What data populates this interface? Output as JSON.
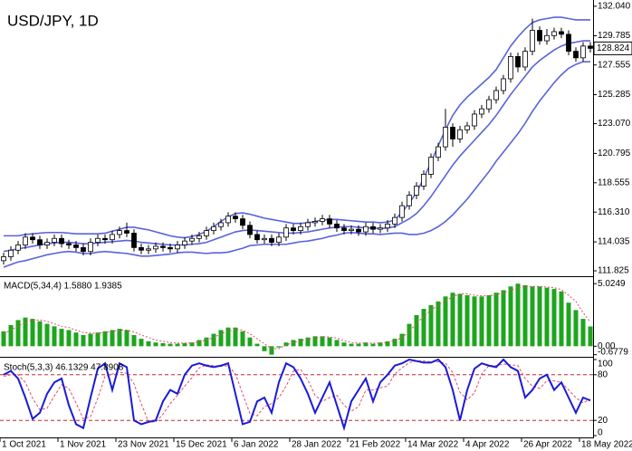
{
  "chart_data": [
    {
      "type": "candlestick",
      "title": "USD/JPY, 1D",
      "title_color": "#22b53c",
      "last_price": 128.824,
      "categories": [
        "1 Oct 2021",
        null,
        null,
        null,
        null,
        null,
        null,
        null,
        "1 Nov 2021",
        null,
        null,
        null,
        null,
        null,
        null,
        null,
        "23 Nov 2021",
        null,
        null,
        null,
        null,
        null,
        null,
        null,
        "15 Dec 2021",
        null,
        null,
        null,
        null,
        null,
        null,
        null,
        "6 Jan 2022",
        null,
        null,
        null,
        null,
        null,
        null,
        null,
        "28 Jan 2022",
        null,
        null,
        null,
        null,
        null,
        null,
        null,
        "21 Feb 2022",
        null,
        null,
        null,
        null,
        null,
        null,
        null,
        "14 Mar 2022",
        null,
        null,
        null,
        null,
        null,
        null,
        null,
        "4 Apr 2022",
        null,
        null,
        null,
        null,
        null,
        null,
        null,
        "26 Apr 2022",
        null,
        null,
        null,
        null,
        null,
        null,
        null,
        "18 May 2022",
        null
      ],
      "open": [
        112.6,
        112.9,
        113.4,
        113.8,
        114.4,
        114.2,
        113.8,
        114.0,
        114.3,
        113.9,
        113.8,
        113.6,
        113.3,
        114.0,
        114.3,
        114.2,
        114.6,
        114.9,
        114.7,
        113.6,
        113.4,
        113.5,
        113.7,
        113.6,
        113.5,
        113.8,
        114.1,
        114.3,
        114.5,
        114.9,
        115.2,
        115.5,
        116.0,
        115.8,
        115.3,
        114.6,
        114.2,
        114.3,
        114.0,
        114.4,
        115.1,
        114.9,
        115.2,
        115.5,
        115.6,
        115.8,
        115.4,
        115.1,
        114.9,
        115.0,
        114.8,
        115.2,
        115.0,
        115.1,
        115.4,
        115.9,
        116.8,
        117.6,
        118.3,
        119.2,
        120.5,
        121.3,
        122.8,
        121.9,
        122.6,
        122.9,
        123.8,
        124.2,
        124.9,
        125.6,
        126.5,
        128.2,
        127.4,
        128.6,
        130.2,
        129.4,
        129.8,
        130.1,
        129.9,
        128.6,
        128.1,
        129.0
      ],
      "high": [
        113.2,
        113.7,
        114.1,
        114.7,
        114.7,
        114.5,
        114.3,
        114.6,
        114.6,
        114.2,
        114.1,
        113.9,
        114.3,
        114.6,
        114.6,
        114.9,
        115.2,
        115.5,
        115.0,
        113.9,
        113.8,
        114.0,
        114.0,
        113.9,
        114.1,
        114.4,
        114.6,
        114.8,
        115.2,
        115.5,
        115.8,
        116.3,
        116.3,
        116.1,
        115.6,
        114.9,
        114.6,
        114.6,
        114.7,
        115.4,
        115.4,
        115.5,
        115.8,
        115.9,
        116.1,
        116.1,
        115.7,
        115.4,
        115.3,
        115.3,
        115.5,
        115.5,
        115.4,
        115.7,
        116.2,
        117.1,
        117.9,
        118.6,
        119.5,
        120.8,
        121.6,
        124.2,
        123.1,
        122.9,
        123.2,
        124.1,
        124.5,
        125.2,
        125.9,
        126.8,
        128.5,
        128.5,
        128.9,
        131.1,
        130.5,
        130.3,
        130.4,
        130.4,
        130.2,
        128.9,
        129.3,
        129.3
      ],
      "low": [
        112.3,
        112.6,
        113.1,
        113.5,
        113.9,
        113.5,
        113.5,
        113.7,
        113.6,
        113.5,
        113.3,
        113.0,
        113.0,
        113.7,
        113.9,
        113.9,
        114.3,
        114.4,
        113.3,
        113.1,
        113.1,
        113.2,
        113.3,
        113.2,
        113.2,
        113.5,
        113.8,
        114.0,
        114.2,
        114.6,
        114.9,
        115.2,
        115.5,
        115.0,
        114.3,
        113.9,
        113.9,
        113.7,
        113.7,
        114.1,
        114.6,
        114.6,
        114.9,
        115.2,
        115.3,
        115.1,
        114.8,
        114.6,
        114.6,
        114.5,
        114.5,
        114.7,
        114.7,
        114.8,
        115.1,
        115.6,
        116.5,
        117.3,
        118.0,
        118.9,
        120.2,
        121.0,
        121.3,
        121.6,
        122.3,
        122.6,
        123.5,
        123.9,
        124.6,
        125.3,
        126.2,
        127.0,
        127.1,
        128.3,
        129.1,
        129.1,
        129.5,
        129.6,
        128.3,
        127.8,
        127.8,
        128.5
      ],
      "close": [
        112.9,
        113.4,
        113.8,
        114.4,
        114.2,
        113.8,
        114.0,
        114.3,
        113.9,
        113.8,
        113.6,
        113.3,
        114.0,
        114.3,
        114.2,
        114.6,
        114.9,
        114.7,
        113.6,
        113.4,
        113.5,
        113.7,
        113.6,
        113.5,
        113.8,
        114.1,
        114.3,
        114.5,
        114.9,
        115.2,
        115.5,
        116.0,
        115.8,
        115.3,
        114.6,
        114.2,
        114.3,
        114.0,
        114.4,
        115.1,
        114.9,
        115.2,
        115.5,
        115.6,
        115.8,
        115.4,
        115.1,
        114.9,
        115.0,
        114.8,
        115.2,
        115.0,
        115.1,
        115.4,
        115.9,
        116.8,
        117.6,
        118.3,
        119.2,
        120.5,
        121.3,
        122.8,
        121.9,
        122.6,
        122.9,
        123.8,
        124.2,
        124.9,
        125.6,
        126.5,
        128.2,
        127.4,
        128.6,
        130.2,
        129.4,
        129.8,
        130.1,
        129.9,
        128.6,
        128.1,
        129.0,
        128.824
      ],
      "series": [
        {
          "color": "#5a63dc",
          "values": [
            114.5,
            114.5,
            114.5,
            114.6,
            114.65,
            114.7,
            114.75,
            114.75,
            114.75,
            114.7,
            114.65,
            114.65,
            114.65,
            114.65,
            114.7,
            114.85,
            115.0,
            115.15,
            115.15,
            115.05,
            114.95,
            114.8,
            114.65,
            114.5,
            114.4,
            114.35,
            114.45,
            114.6,
            114.85,
            115.2,
            115.6,
            115.95,
            116.2,
            116.25,
            116.15,
            116.0,
            115.85,
            115.75,
            115.65,
            115.55,
            115.45,
            115.45,
            115.5,
            115.6,
            115.7,
            115.75,
            115.75,
            115.7,
            115.65,
            115.6,
            115.55,
            115.55,
            115.5,
            115.55,
            115.7,
            116.3,
            117.0,
            117.8,
            118.9,
            120.1,
            121.4,
            122.6,
            123.7,
            124.5,
            125.1,
            125.6,
            126.1,
            126.6,
            127.2,
            128.1,
            129.0,
            129.7,
            130.3,
            130.8,
            131.0,
            131.1,
            131.2,
            131.2,
            131.1,
            131.0,
            131.0,
            131.0
          ]
        },
        {
          "color": "#5a63dc",
          "values": [
            113.3,
            113.4,
            113.5,
            113.6,
            113.7,
            113.8,
            113.9,
            113.95,
            114.0,
            114.0,
            113.95,
            113.9,
            113.9,
            113.95,
            114.0,
            114.05,
            114.1,
            114.15,
            114.1,
            114.0,
            113.95,
            113.9,
            113.85,
            113.8,
            113.8,
            113.8,
            113.85,
            113.9,
            114.0,
            114.2,
            114.4,
            114.6,
            114.8,
            114.9,
            114.95,
            114.9,
            114.85,
            114.8,
            114.75,
            114.7,
            114.7,
            114.75,
            114.8,
            114.9,
            115.0,
            115.1,
            115.15,
            115.2,
            115.2,
            115.15,
            115.1,
            115.1,
            115.05,
            115.1,
            115.2,
            115.5,
            115.8,
            116.2,
            116.8,
            117.5,
            118.3,
            119.1,
            119.9,
            120.6,
            121.2,
            121.8,
            122.4,
            123.0,
            123.7,
            124.5,
            125.3,
            126.0,
            126.7,
            127.4,
            127.9,
            128.3,
            128.7,
            129.0,
            129.2,
            129.3,
            129.4,
            129.4
          ]
        },
        {
          "color": "#5a63dc",
          "values": [
            112.1,
            112.3,
            112.5,
            112.6,
            112.75,
            112.9,
            113.05,
            113.15,
            113.25,
            113.3,
            113.25,
            113.15,
            113.15,
            113.25,
            113.3,
            113.25,
            113.2,
            113.15,
            113.05,
            112.95,
            112.95,
            113.0,
            113.05,
            113.1,
            113.2,
            113.25,
            113.25,
            113.2,
            113.15,
            113.2,
            113.2,
            113.25,
            113.4,
            113.55,
            113.75,
            113.8,
            113.85,
            113.85,
            113.85,
            113.85,
            113.95,
            114.05,
            114.1,
            114.2,
            114.3,
            114.45,
            114.55,
            114.7,
            114.75,
            114.7,
            114.65,
            114.65,
            114.6,
            114.65,
            114.7,
            114.7,
            114.6,
            114.6,
            114.7,
            114.9,
            115.2,
            115.6,
            116.1,
            116.7,
            117.3,
            118.0,
            118.7,
            119.4,
            120.2,
            120.9,
            121.6,
            122.3,
            123.1,
            124.0,
            124.8,
            125.5,
            126.2,
            126.8,
            127.3,
            127.6,
            127.8,
            127.8
          ]
        }
      ],
      "ylim": [
        111.55,
        132.38
      ],
      "yticks": [
        {
          "value": 132.04,
          "label": "132.040"
        },
        129.785,
        127.555,
        125.285,
        {
          "value": 123.07,
          "label": "123.070"
        },
        120.795,
        118.555,
        {
          "value": 116.31,
          "label": "116.310"
        },
        114.035,
        111.825
      ]
    },
    {
      "type": "macd",
      "title": "MACD(5,34,4) 1.5880 1.9385",
      "series": [
        {
          "color": "#1ea51e",
          "values": [
            1.2,
            1.7,
            2.1,
            2.3,
            2.2,
            2.0,
            1.8,
            1.6,
            1.4,
            1.3,
            1.1,
            0.9,
            1.0,
            1.1,
            1.2,
            1.3,
            1.4,
            1.3,
            0.9,
            0.6,
            0.4,
            0.3,
            0.25,
            0.2,
            0.2,
            0.25,
            0.3,
            0.5,
            0.7,
            1.0,
            1.3,
            1.5,
            1.5,
            1.2,
            0.7,
            0.2,
            -0.4,
            -0.6779,
            -0.1,
            0.3,
            0.5,
            0.6,
            0.7,
            0.8,
            0.8,
            0.7,
            0.5,
            0.3,
            0.2,
            0.2,
            0.3,
            0.2,
            0.3,
            0.4,
            0.6,
            1.0,
            1.8,
            2.5,
            3.0,
            3.3,
            3.6,
            4.0,
            4.3,
            4.2,
            4.1,
            4.0,
            4.0,
            4.1,
            4.3,
            4.5,
            4.8,
            5.0249,
            4.9,
            4.8,
            4.8,
            4.7,
            4.6,
            4.4,
            3.5,
            2.9,
            2.2,
            1.588
          ]
        },
        {
          "color": "#e0506a",
          "values": [
            1.0,
            1.3,
            1.6,
            1.9,
            2.1,
            2.1,
            2.0,
            1.8,
            1.6,
            1.5,
            1.3,
            1.1,
            1.05,
            1.05,
            1.1,
            1.2,
            1.3,
            1.3,
            1.15,
            0.9,
            0.7,
            0.5,
            0.4,
            0.3,
            0.25,
            0.25,
            0.27,
            0.35,
            0.5,
            0.7,
            1.0,
            1.2,
            1.35,
            1.3,
            1.0,
            0.6,
            0.2,
            -0.2,
            -0.2,
            0.1,
            0.3,
            0.45,
            0.55,
            0.65,
            0.75,
            0.75,
            0.65,
            0.45,
            0.3,
            0.25,
            0.25,
            0.25,
            0.25,
            0.3,
            0.45,
            0.7,
            1.2,
            1.8,
            2.4,
            2.9,
            3.3,
            3.6,
            4.0,
            4.2,
            4.2,
            4.1,
            4.05,
            4.05,
            4.15,
            4.3,
            4.5,
            4.7,
            4.8,
            4.8,
            4.8,
            4.75,
            4.7,
            4.55,
            4.1,
            3.6,
            2.7,
            1.9385
          ]
        }
      ],
      "ylim": [
        -0.85,
        5.55
      ],
      "yticks": [
        5.0249,
        {
          "value": 0,
          "label": "0.00"
        },
        -0.6779
      ]
    },
    {
      "type": "stochastic",
      "title": "Stoch(5,3,3) 46.1329 47.8908",
      "level_color": "#c0282d",
      "series": [
        {
          "color": "#1a1ad8",
          "values": [
            80,
            85,
            75,
            50,
            22,
            30,
            55,
            70,
            75,
            40,
            15,
            10,
            50,
            88,
            95,
            60,
            95,
            90,
            20,
            15,
            18,
            20,
            45,
            60,
            55,
            80,
            92,
            95,
            92,
            90,
            92,
            95,
            55,
            15,
            18,
            45,
            50,
            30,
            70,
            95,
            90,
            75,
            55,
            30,
            50,
            70,
            40,
            10,
            45,
            60,
            75,
            45,
            70,
            80,
            92,
            95,
            100,
            98,
            96,
            96,
            100,
            90,
            60,
            20,
            60,
            88,
            95,
            92,
            90,
            100,
            90,
            85,
            50,
            60,
            75,
            80,
            60,
            70,
            50,
            30,
            50,
            46.1329
          ]
        },
        {
          "color": "#e0506a",
          "values": [
            78,
            80,
            80,
            70,
            49,
            34,
            36,
            52,
            67,
            62,
            43,
            22,
            25,
            49,
            78,
            81,
            83,
            82,
            68,
            42,
            18,
            18,
            28,
            42,
            53,
            65,
            76,
            89,
            93,
            92,
            91,
            92,
            81,
            55,
            29,
            26,
            38,
            42,
            50,
            65,
            85,
            87,
            73,
            53,
            45,
            50,
            53,
            40,
            32,
            38,
            60,
            60,
            63,
            65,
            81,
            89,
            96,
            98,
            98,
            97,
            97,
            95,
            83,
            57,
            47,
            56,
            81,
            92,
            92,
            94,
            93,
            92,
            75,
            65,
            62,
            72,
            72,
            70,
            60,
            50,
            43,
            47.8908
          ]
        }
      ],
      "ylim": [
        0,
        100
      ],
      "yticks": [
        100,
        80,
        20,
        0
      ]
    }
  ]
}
